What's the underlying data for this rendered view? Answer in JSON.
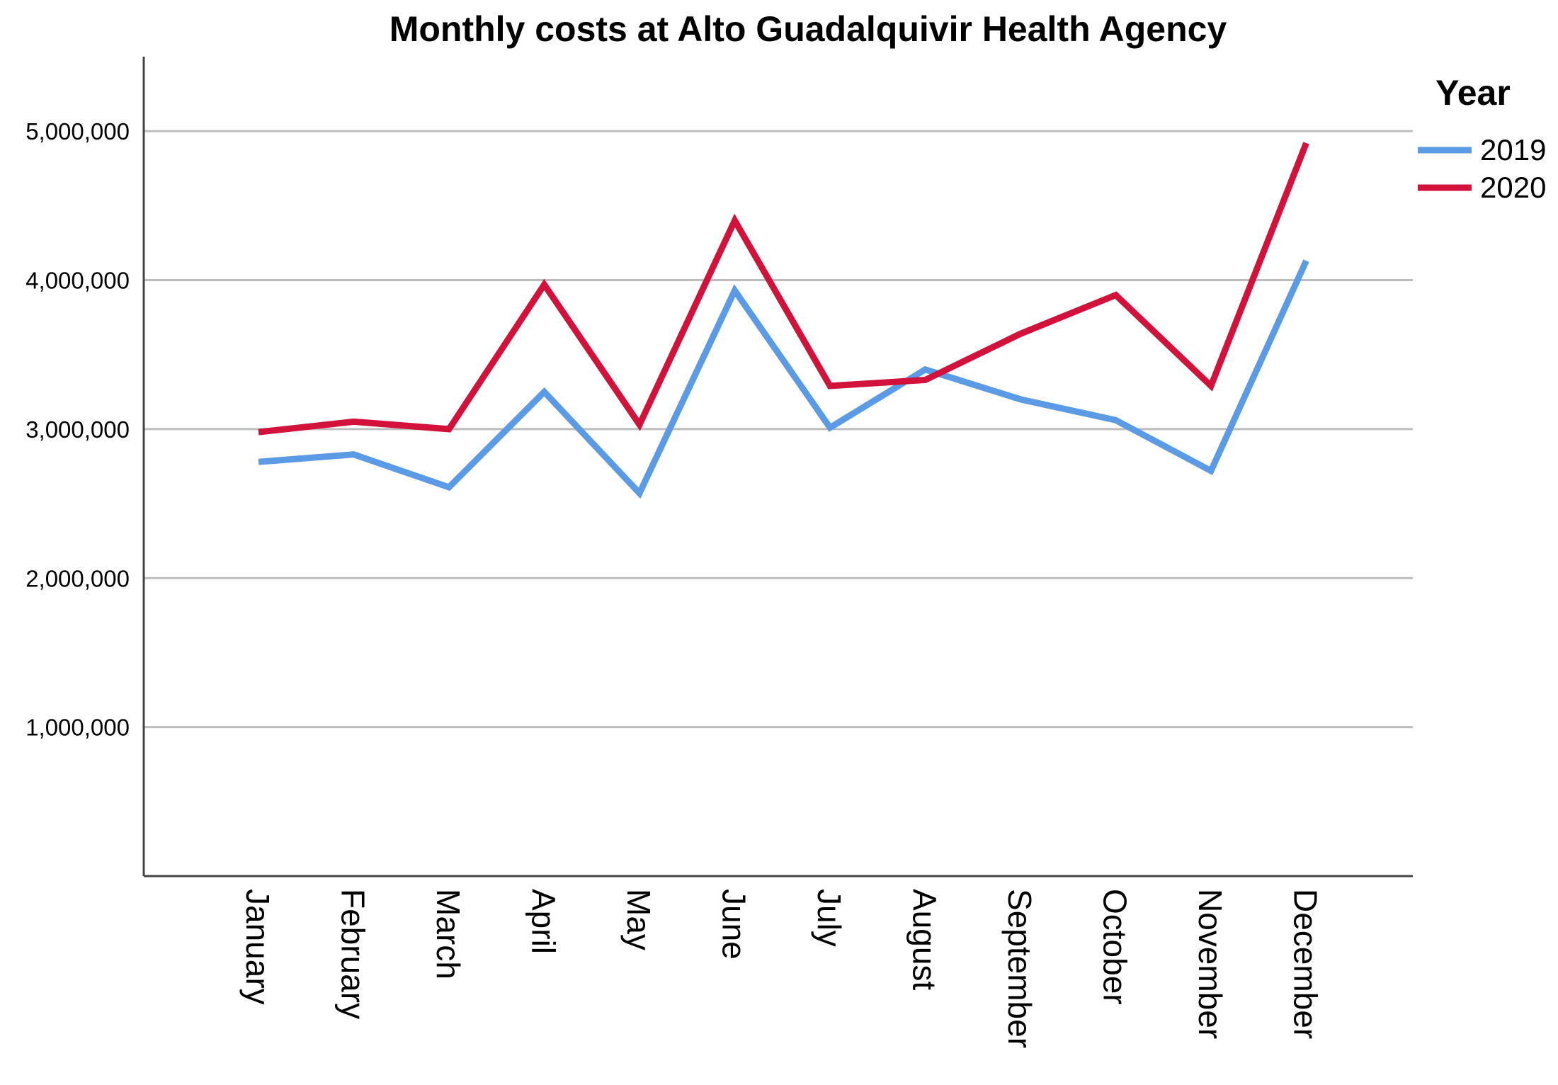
{
  "chart_data": {
    "type": "line",
    "title": "Monthly costs at  Alto Guadalquivir Health Agency",
    "xlabel": "",
    "ylabel": "",
    "categories": [
      "January",
      "February",
      "March",
      "April",
      "May",
      "June",
      "July",
      "August",
      "September",
      "October",
      "November",
      "December"
    ],
    "ylim": [
      0,
      5500000
    ],
    "y_ticks": [
      1000000,
      2000000,
      3000000,
      4000000,
      5000000
    ],
    "y_tick_labels": [
      "1,000,000",
      "2,000,000",
      "3,000,000",
      "4,000,000",
      "5,000,000"
    ],
    "grid": true,
    "legend": {
      "title": "Year",
      "position": "right"
    },
    "series": [
      {
        "name": "2019",
        "color": "#5b9be6",
        "values": [
          2780000,
          2830000,
          2610000,
          3250000,
          2570000,
          3930000,
          3010000,
          3400000,
          3200000,
          3060000,
          2720000,
          4130000
        ]
      },
      {
        "name": "2020",
        "color": "#d2123a",
        "values": [
          2980000,
          3050000,
          3000000,
          3970000,
          3030000,
          4400000,
          3290000,
          3330000,
          3640000,
          3900000,
          3290000,
          4920000
        ]
      }
    ]
  }
}
